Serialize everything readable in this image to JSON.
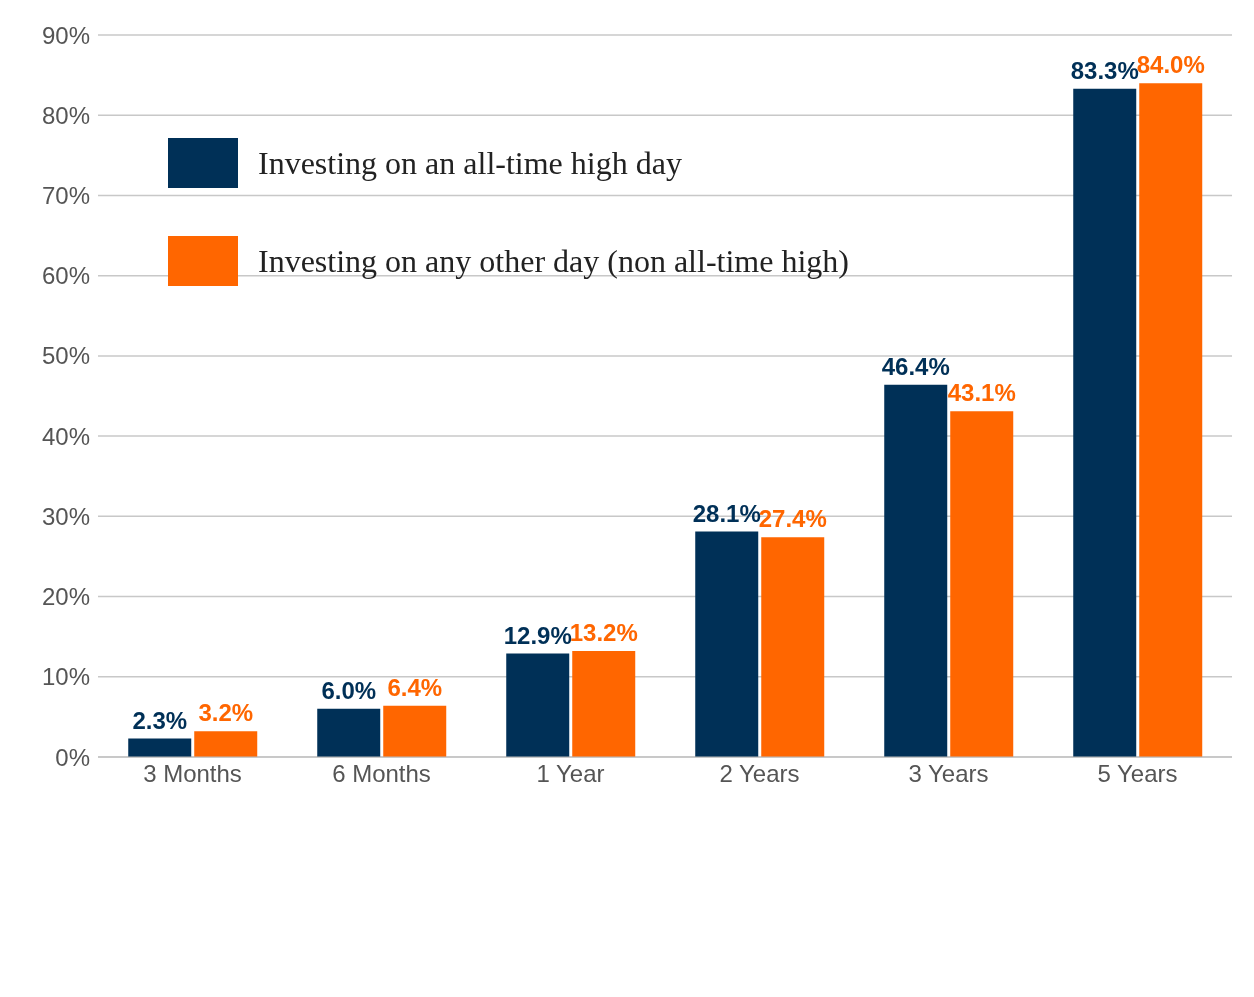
{
  "chart_data": {
    "type": "bar",
    "categories": [
      "3 Months",
      "6 Months",
      "1 Year",
      "2 Years",
      "3 Years",
      "5 Years"
    ],
    "series": [
      {
        "name": "Investing on an all-time high day",
        "color": "#003057",
        "values": [
          2.3,
          6.0,
          12.9,
          28.1,
          46.4,
          83.3
        ],
        "value_labels": [
          "2.3%",
          "6.0%",
          "12.9%",
          "28.1%",
          "46.4%",
          "83.3%"
        ]
      },
      {
        "name": "Investing on any other day (non all-time high)",
        "color": "#ff6600",
        "values": [
          3.2,
          6.4,
          13.2,
          27.4,
          43.1,
          84.0
        ],
        "value_labels": [
          "3.2%",
          "6.4%",
          "13.2%",
          "27.4%",
          "43.1%",
          "84.0%"
        ]
      }
    ],
    "ylim": [
      0,
      90
    ],
    "yticks": [
      {
        "value": 0,
        "label": "0%"
      },
      {
        "value": 10,
        "label": "10%"
      },
      {
        "value": 20,
        "label": "20%"
      },
      {
        "value": 30,
        "label": "30%"
      },
      {
        "value": 40,
        "label": "40%"
      },
      {
        "value": 50,
        "label": "50%"
      },
      {
        "value": 60,
        "label": "60%"
      },
      {
        "value": 70,
        "label": "70%"
      },
      {
        "value": 80,
        "label": "80%"
      },
      {
        "value": 90,
        "label": "90%"
      }
    ],
    "grid": "y",
    "legend": "top left"
  }
}
